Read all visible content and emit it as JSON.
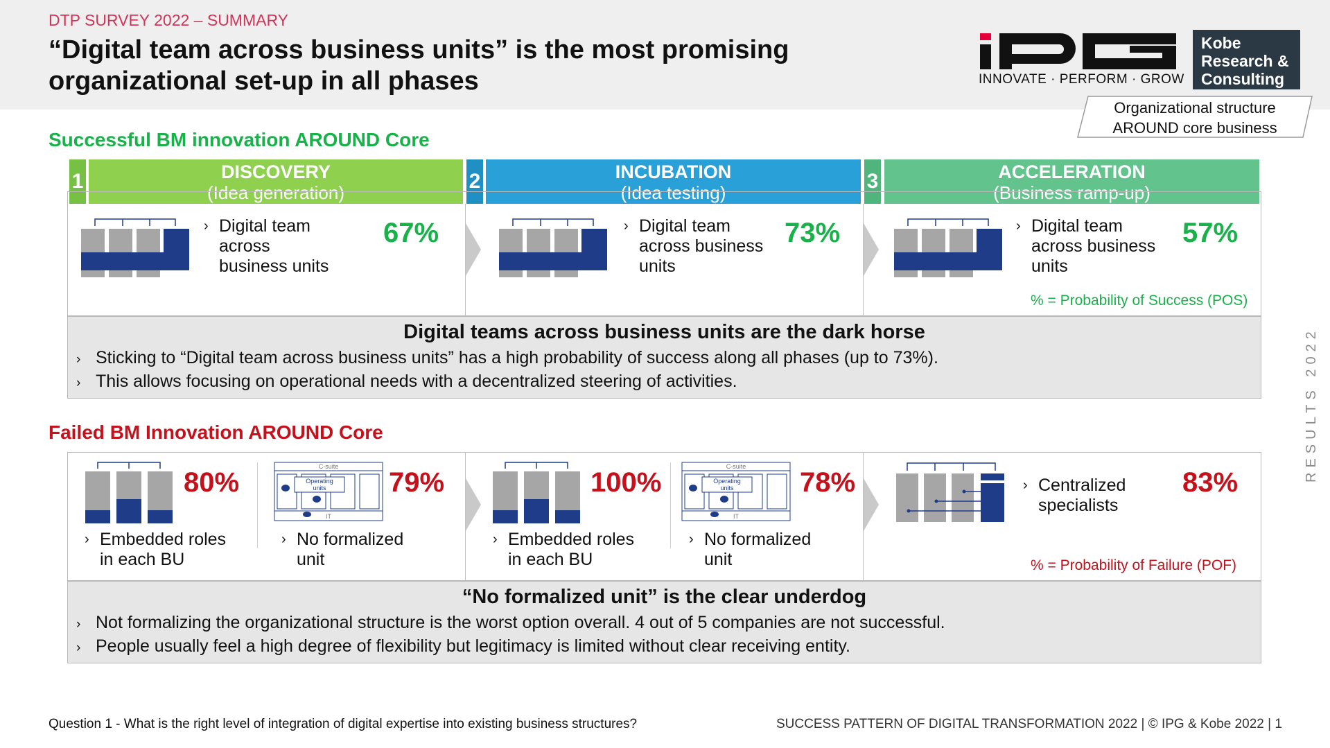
{
  "header": {
    "survey": "DTP SURVEY 2022 – SUMMARY",
    "title_line1": "“Digital team across business units” is the most promising",
    "title_line2": "organizational set-up in all phases"
  },
  "logos": {
    "ipg_text": "IPG",
    "ipg_tagline": "INNOVATE · PERFORM · GROW",
    "kobe_line1": "Kobe",
    "kobe_line2": "Research &",
    "kobe_line3": "Consulting"
  },
  "org_box": {
    "line1": "Organizational structure",
    "line2": "AROUND core business"
  },
  "success": {
    "title": "Successful BM innovation AROUND Core",
    "phases": [
      {
        "num": "1",
        "name": "DISCOVERY",
        "sub": "(Idea generation)",
        "color": "#8fd14f",
        "numColor": "#76c043",
        "item_lines": [
          "Digital team",
          "across",
          "business units"
        ],
        "pct": "67%"
      },
      {
        "num": "2",
        "name": "INCUBATION",
        "sub": "(Idea testing)",
        "color": "#29a0d8",
        "numColor": "#1f8fc4",
        "item_lines": [
          "Digital team",
          "across business",
          "units"
        ],
        "pct": "73%"
      },
      {
        "num": "3",
        "name": "ACCELERATION",
        "sub": "(Business ramp-up)",
        "color": "#62c38c",
        "numColor": "#4fb57c",
        "item_lines": [
          "Digital team",
          "across business",
          "units"
        ],
        "pct": "57%"
      }
    ],
    "note": "% = Probability of Success (POS)",
    "summary_title": "Digital teams across business units are the dark horse",
    "summary_bullets": [
      "Sticking to “Digital team across business units” has a high probability of success along all phases (up to 73%).",
      "This allows focusing on operational needs with a decentralized steering of activities."
    ]
  },
  "failed": {
    "title": "Failed BM Innovation AROUND Core",
    "items": [
      {
        "pct": "80%",
        "lines": [
          "Embedded roles",
          "in each BU"
        ]
      },
      {
        "pct": "79%",
        "lines": [
          "No formalized",
          "unit"
        ]
      },
      {
        "pct": "100%",
        "lines": [
          "Embedded roles",
          "in each BU"
        ]
      },
      {
        "pct": "78%",
        "lines": [
          "No formalized",
          "unit"
        ]
      },
      {
        "pct": "83%",
        "lines": [
          "Centralized",
          "specialists"
        ]
      }
    ],
    "diagram_labels": {
      "csuite": "C-suite",
      "operating": "Operating",
      "units": "units",
      "it": "IT"
    },
    "note": "% = Probability of Failure (POF)",
    "summary_title": "“No formalized unit” is the clear underdog",
    "summary_bullets": [
      "Not formalizing the organizational structure is the worst option overall. 4 out of 5 companies are not successful.",
      "People usually feel a high degree of flexibility but legitimacy is limited without clear receiving entity."
    ]
  },
  "side_label": "RESULTS 2022",
  "footer": {
    "question": "Question 1 - What is the right level of integration of digital expertise into existing business structures?",
    "source": "SUCCESS PATTERN OF DIGITAL TRANSFORMATION 2022 | © IPG & Kobe 2022 | 1"
  },
  "colors": {
    "green": "#18b14a",
    "red": "#c4111b",
    "navy": "#1f3c88",
    "grey": "#a6a6a6",
    "pink": "#d2345a"
  }
}
